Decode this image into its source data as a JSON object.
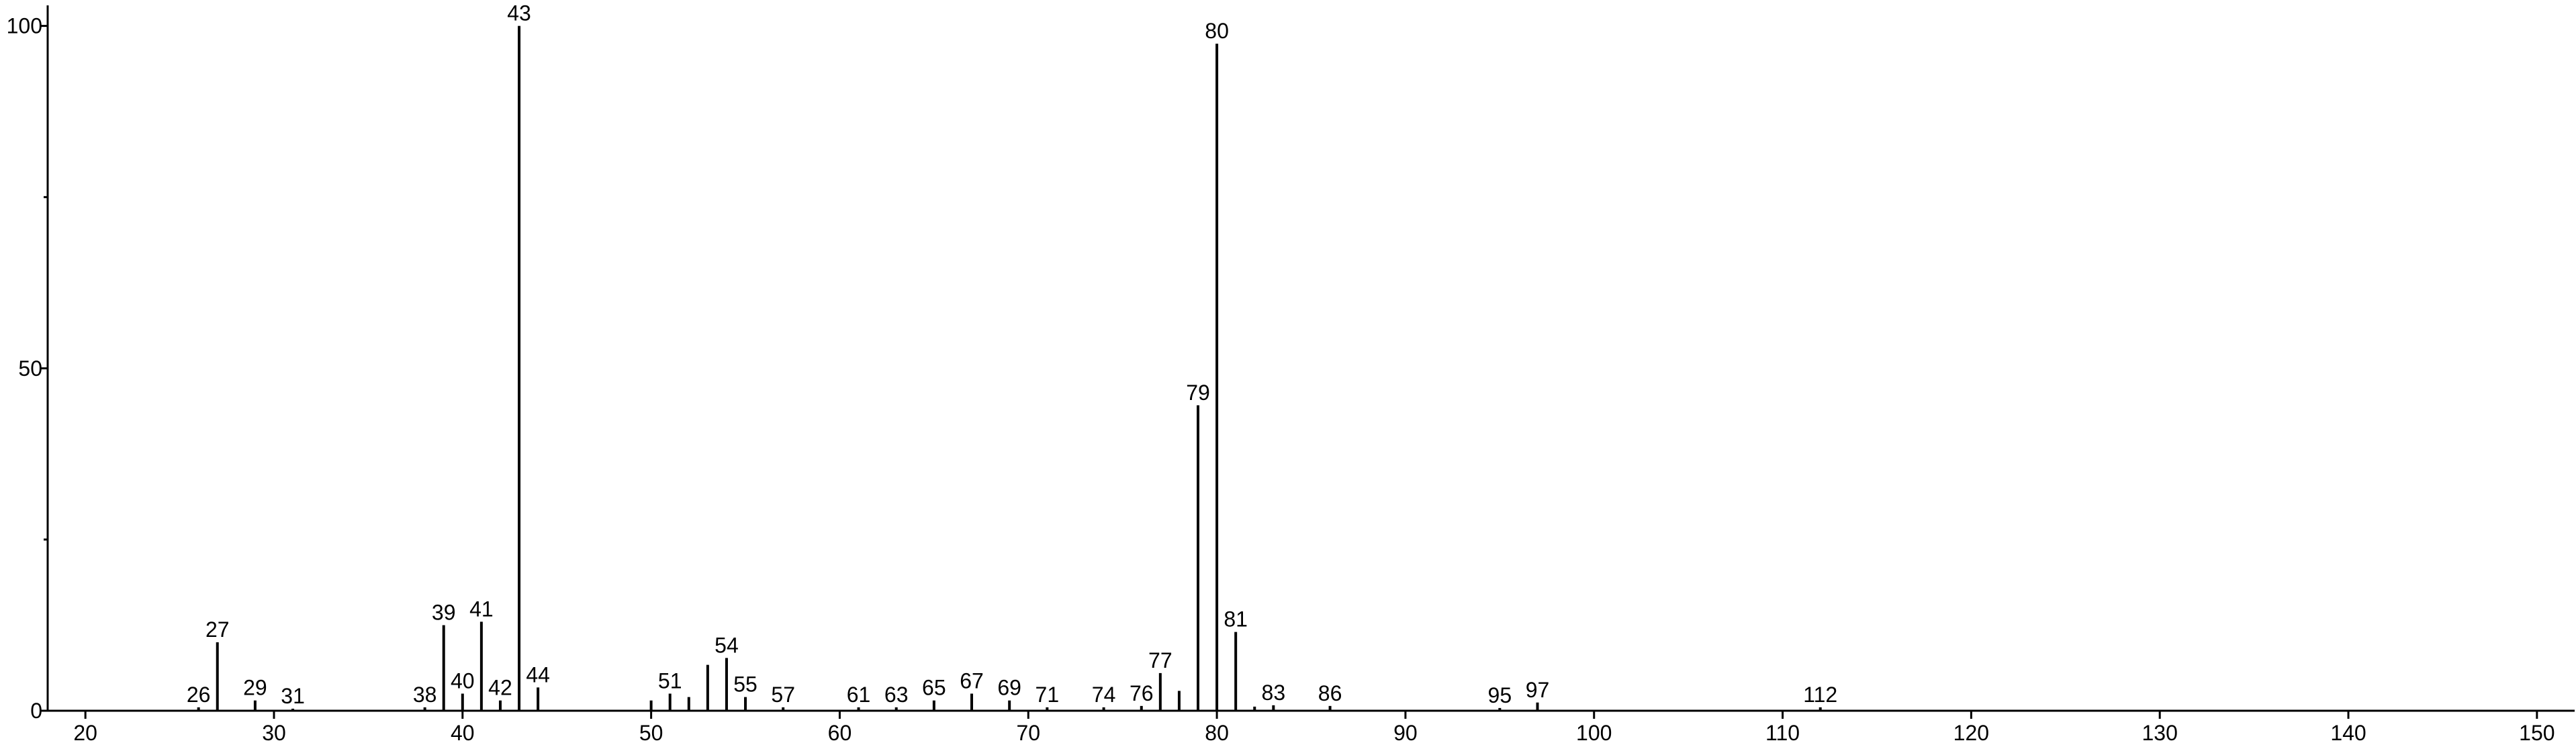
{
  "chart_data": {
    "type": "stem",
    "x": [
      26,
      27,
      29,
      31,
      38,
      39,
      40,
      41,
      42,
      43,
      44,
      50,
      51,
      52,
      53,
      54,
      55,
      57,
      61,
      63,
      65,
      67,
      69,
      71,
      74,
      76,
      77,
      78,
      79,
      80,
      81,
      82,
      83,
      86,
      95,
      97,
      112
    ],
    "values": [
      0.5,
      10,
      1.5,
      0.3,
      0.5,
      12.5,
      2.5,
      13,
      1.5,
      100,
      3.4,
      1.5,
      2.5,
      2,
      6.7,
      7.7,
      2,
      0.5,
      0.5,
      0.5,
      1.5,
      2.5,
      1.5,
      0.5,
      0.5,
      0.7,
      5.5,
      2.9,
      44.6,
      97.4,
      11.5,
      0.6,
      0.8,
      0.7,
      0.4,
      1.2,
      0.5
    ],
    "labels": [
      "26",
      "27",
      "29",
      "31",
      "38",
      "39",
      "40",
      "41",
      "42",
      "43",
      "44",
      null,
      "51",
      null,
      null,
      "54",
      "55",
      "57",
      "61",
      "63",
      "65",
      "67",
      "69",
      "71",
      "74",
      "76",
      "77",
      null,
      "79",
      "80",
      "81",
      null,
      "83",
      "86",
      "95",
      "97",
      "112"
    ],
    "color": "#000000",
    "xlim": [
      18,
      152
    ],
    "xticks": [
      20,
      30,
      40,
      50,
      60,
      70,
      80,
      90,
      100,
      110,
      120,
      130,
      140,
      150
    ],
    "ylim": [
      0,
      103
    ],
    "yticks": [
      0,
      50,
      100
    ],
    "yminorticks": [
      25,
      75
    ]
  }
}
